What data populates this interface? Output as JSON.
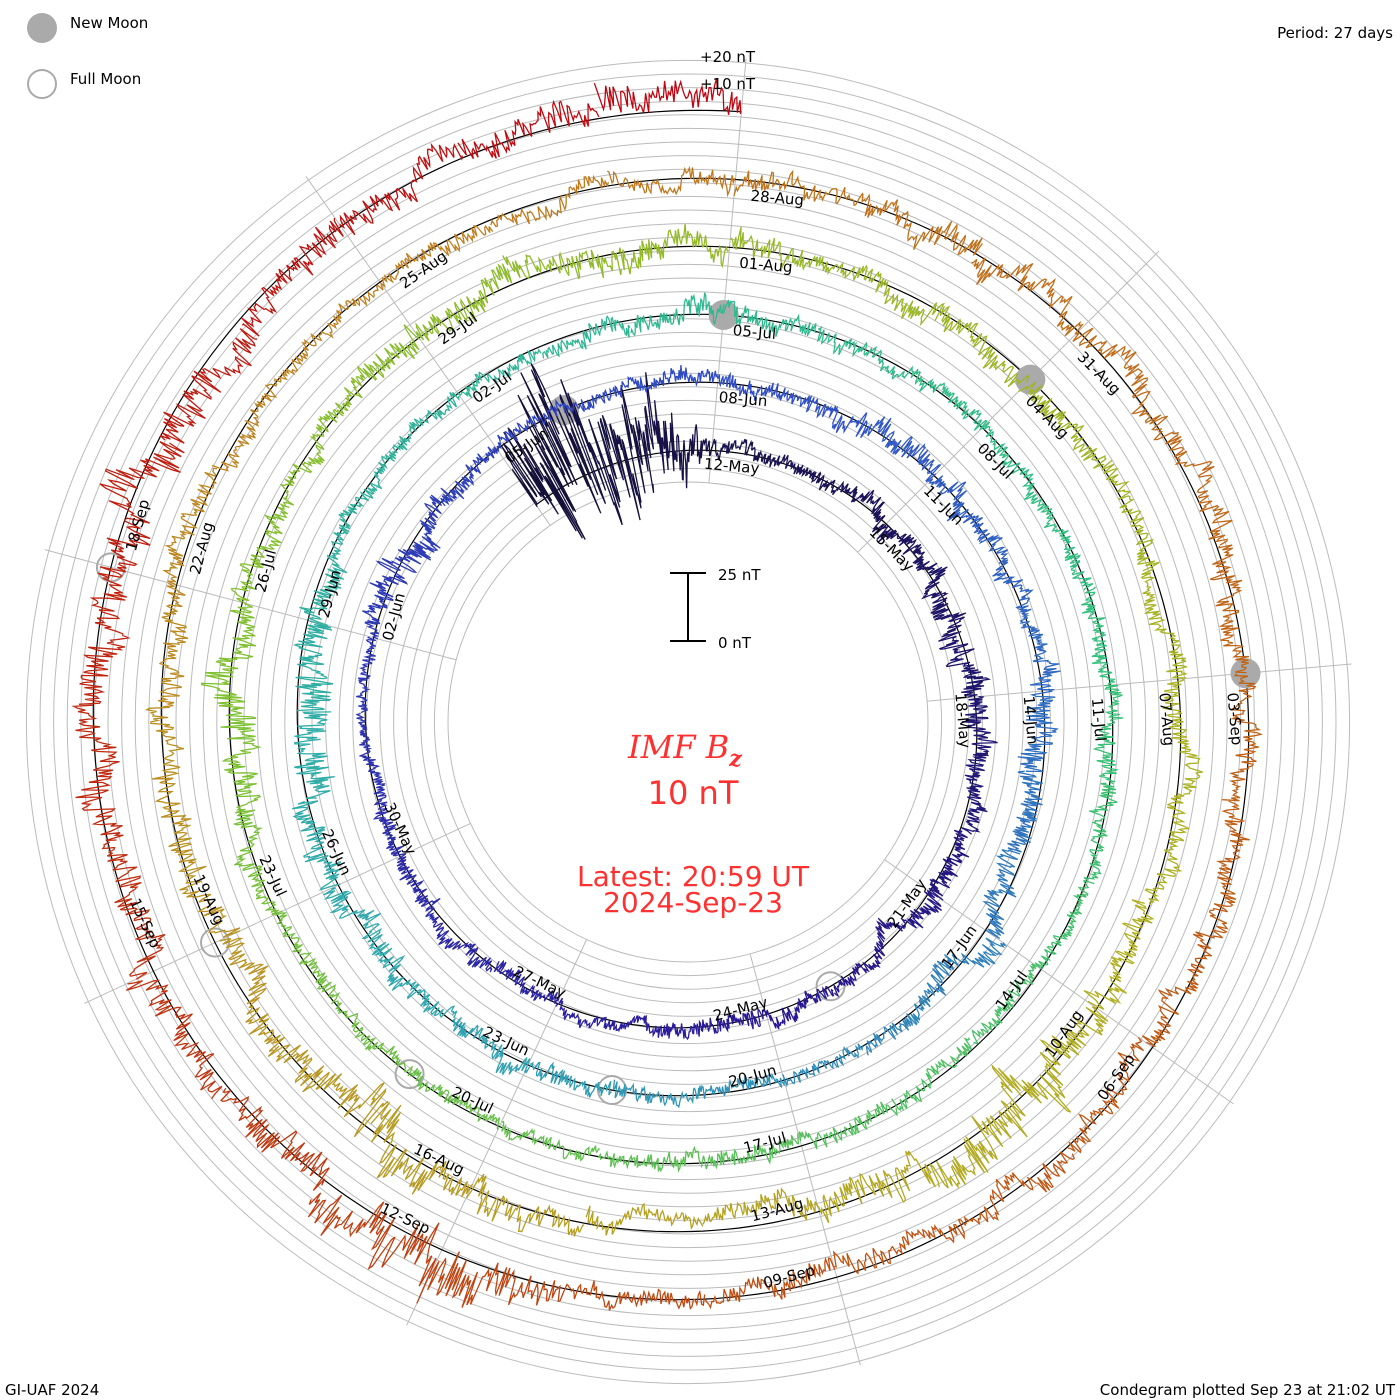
{
  "legend": {
    "new_moon": "New Moon",
    "full_moon": "Full Moon",
    "new_moon_color": "#aaaaaa"
  },
  "period_label": "Period: 27 days",
  "footer_left": "GI-UAF 2024",
  "footer_right": "Condegram plotted Sep 23 at 21:02 UT",
  "center": {
    "title_main": "IMF B",
    "title_sub": "z",
    "scale_text": "10 nT",
    "latest": "Latest: 20:59 UT",
    "date": "2024-Sep-23",
    "text_color": "#ff3030"
  },
  "scale_bar": {
    "top_label": "25 nT",
    "bottom_label": "0 nT",
    "top_value": 25,
    "bottom_value": 0
  },
  "ring_labels": {
    "plus20": "+20 nT",
    "plus10": "+10 nT"
  },
  "chart_data": {
    "type": "line",
    "subtype": "condegram-spiral",
    "title": "IMF Bz",
    "period_days": 27,
    "units": "nT",
    "total_days": 138,
    "date_label_interval_days": 3,
    "date_label_first_offset_days": 3,
    "date_labels": [
      "12-May",
      "15-May",
      "18-May",
      "21-May",
      "24-May",
      "27-May",
      "30-May",
      "02-Jun",
      "05-Jun",
      "08-Jun",
      "11-Jun",
      "14-Jun",
      "17-Jun",
      "20-Jun",
      "23-Jun",
      "26-Jun",
      "29-Jun",
      "02-Jul",
      "05-Jul",
      "08-Jul",
      "11-Jul",
      "14-Jul",
      "17-Jul",
      "20-Jul",
      "23-Jul",
      "26-Jul",
      "29-Jul",
      "01-Aug",
      "04-Aug",
      "07-Aug",
      "10-Aug",
      "13-Aug",
      "16-Aug",
      "19-Aug",
      "22-Aug",
      "25-Aug",
      "28-Aug",
      "31-Aug",
      "03-Sep",
      "06-Sep",
      "09-Sep",
      "12-Sep",
      "15-Sep",
      "18-Sep"
    ],
    "new_moon_day_offsets": [
      28,
      57,
      87,
      117
    ],
    "full_moon_day_offsets": [
      14,
      44,
      73,
      102,
      132
    ],
    "daily_fluctuation_nT": [
      30,
      40,
      30,
      6,
      4,
      4,
      6,
      6,
      8,
      8,
      6,
      5,
      7,
      5,
      4,
      6,
      5,
      4,
      4,
      5,
      5,
      5,
      4,
      3,
      4,
      10,
      6,
      4,
      4,
      5,
      5,
      5,
      7,
      8,
      5,
      4,
      8,
      9,
      6,
      7,
      6,
      4,
      4,
      4,
      5,
      6,
      5,
      7,
      7,
      10,
      12,
      8,
      5,
      4,
      4,
      4,
      6,
      6,
      5,
      5,
      5,
      4,
      5,
      5,
      6,
      4,
      4,
      4,
      5,
      5,
      6,
      4,
      4,
      4,
      5,
      4,
      8,
      12,
      8,
      5,
      6,
      8,
      8,
      8,
      7,
      5,
      7,
      7,
      6,
      5,
      6,
      6,
      6,
      8,
      15,
      12,
      8,
      4,
      5,
      10,
      15,
      8,
      8,
      8,
      8,
      6,
      5,
      4,
      4,
      5,
      5,
      6,
      6,
      8,
      8,
      7,
      7,
      7,
      6,
      7,
      7,
      7,
      6,
      6,
      5,
      6,
      18,
      12,
      7,
      9,
      10,
      9,
      11,
      12,
      9,
      8,
      7,
      9
    ],
    "daily_mean_nT": {
      "96": -6,
      "97": -4,
      "137": 6
    },
    "colormap": [
      "#14103a",
      "#2a1a9a",
      "#3050c8",
      "#30a8b0",
      "#30c080",
      "#80c030",
      "#b0b020",
      "#c08020",
      "#c05010",
      "#c00010"
    ]
  }
}
